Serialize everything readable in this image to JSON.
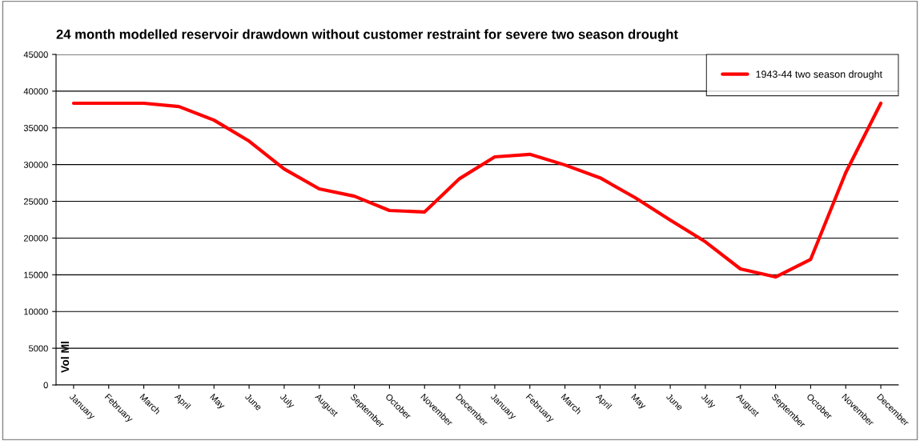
{
  "chart_data": {
    "type": "line",
    "title": "24 month modelled reservoir drawdown without customer restraint for severe two season drought",
    "ylabel": "Vol Ml",
    "categories": [
      "January",
      "February",
      "March",
      "April",
      "May",
      "June",
      "July",
      "August",
      "September",
      "October",
      "November",
      "December",
      "January",
      "February",
      "March",
      "April",
      "May",
      "June",
      "July",
      "August",
      "September",
      "October",
      "November",
      "December"
    ],
    "series": [
      {
        "name": "1943-44 two season drought",
        "color": "#ff0000",
        "values": [
          38350,
          38350,
          38350,
          37900,
          36050,
          33200,
          29400,
          26700,
          25700,
          23750,
          23550,
          28100,
          31050,
          31400,
          29950,
          28200,
          25500,
          22450,
          19500,
          15800,
          14700,
          17100,
          28900,
          38350
        ]
      }
    ],
    "ylim": [
      0,
      45000
    ],
    "yticks": [
      0,
      5000,
      10000,
      15000,
      20000,
      25000,
      30000,
      35000,
      40000,
      45000
    ],
    "grid": "y",
    "legend": "top right"
  }
}
